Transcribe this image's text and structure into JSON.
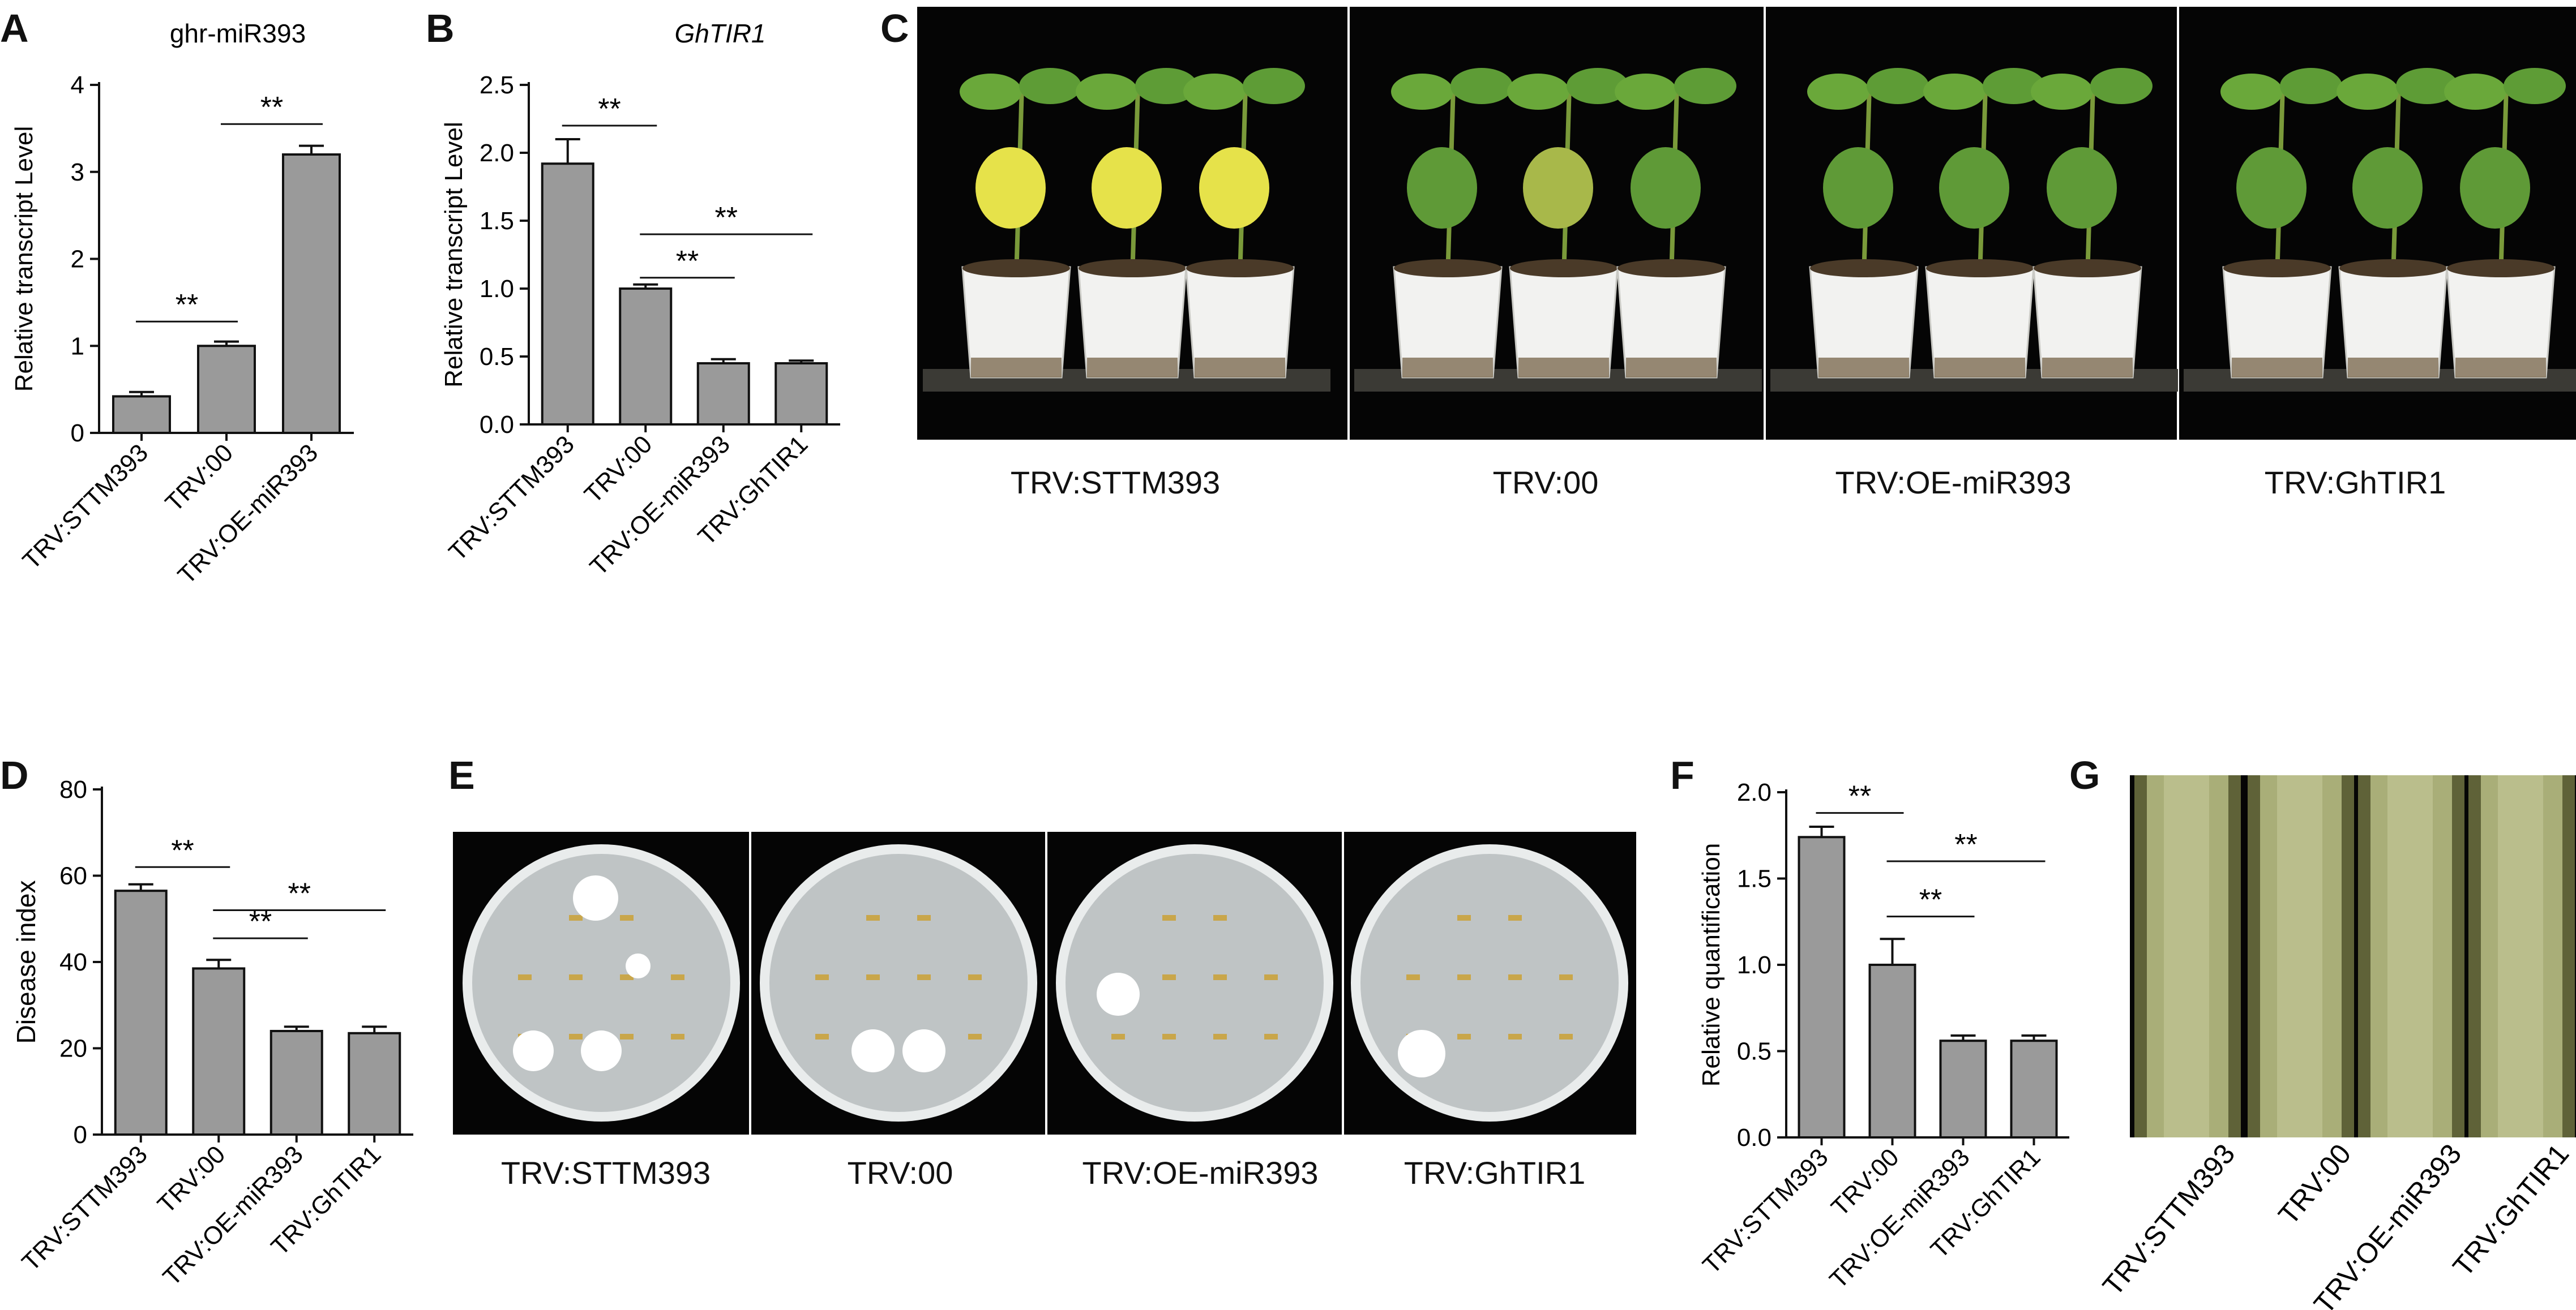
{
  "panels": {
    "A": "A",
    "B": "B",
    "C": "C",
    "D": "D",
    "E": "E",
    "F": "F",
    "G": "G"
  },
  "significance": "**",
  "colors": {
    "bar": "#9a9a9a",
    "axis": "#111111",
    "photo_bg": "#050505",
    "plate_bg": "#bfc4c5",
    "stem": "#aab27a"
  },
  "chart_data": [
    {
      "id": "A",
      "type": "bar",
      "title": "ghr-miR393",
      "ylabel": "Relative transcript Level",
      "categories": [
        "TRV:STTM393",
        "TRV:00",
        "TRV:OE-miR393"
      ],
      "values": [
        0.42,
        1.0,
        3.2
      ],
      "errors": [
        0.05,
        0.05,
        0.1
      ],
      "ylim": [
        0,
        4
      ],
      "yticks": [
        0,
        1,
        2,
        3,
        4
      ],
      "ytick_labels": [
        "0",
        "1",
        "2",
        "3",
        "4"
      ],
      "comparisons": [
        {
          "from": 0,
          "to": 1,
          "y": 1.28
        },
        {
          "from": 1,
          "to": 2,
          "y": 3.55
        }
      ]
    },
    {
      "id": "B",
      "type": "bar",
      "title": "GhTIR1",
      "ylabel": "Relative transcript Level",
      "categories": [
        "TRV:STTM393",
        "TRV:00",
        "TRV:OE-miR393",
        "TRV:GhTIR1"
      ],
      "values": [
        1.92,
        1.0,
        0.45,
        0.45
      ],
      "errors": [
        0.18,
        0.03,
        0.03,
        0.02
      ],
      "ylim": [
        0,
        2.5
      ],
      "yticks": [
        0,
        0.5,
        1.0,
        1.5,
        2.0,
        2.5
      ],
      "ytick_labels": [
        "0.0",
        "0.5",
        "1.0",
        "1.5",
        "2.0",
        "2.5"
      ],
      "comparisons": [
        {
          "from": 0,
          "to": 1,
          "y": 2.2
        },
        {
          "from": 1,
          "to": 2,
          "y": 1.08
        },
        {
          "from": 1,
          "to": 3,
          "y": 1.4
        }
      ]
    },
    {
      "id": "D",
      "type": "bar",
      "title": "",
      "ylabel": "Disease index",
      "categories": [
        "TRV:STTM393",
        "TRV:00",
        "TRV:OE-miR393",
        "TRV:GhTIR1"
      ],
      "values": [
        56.5,
        38.5,
        24.0,
        23.5
      ],
      "errors": [
        1.5,
        2.0,
        1.0,
        1.5
      ],
      "ylim": [
        0,
        80
      ],
      "yticks": [
        0,
        20,
        40,
        60,
        80
      ],
      "ytick_labels": [
        "0",
        "20",
        "40",
        "60",
        "80"
      ],
      "comparisons": [
        {
          "from": 0,
          "to": 1,
          "y": 62
        },
        {
          "from": 1,
          "to": 2,
          "y": 45.5
        },
        {
          "from": 1,
          "to": 3,
          "y": 52
        }
      ]
    },
    {
      "id": "F",
      "type": "bar",
      "title": "",
      "ylabel": "Relative quantification",
      "categories": [
        "TRV:STTM393",
        "TRV:00",
        "TRV:OE-miR393",
        "TRV:GhTIR1"
      ],
      "values": [
        1.74,
        1.0,
        0.56,
        0.56
      ],
      "errors": [
        0.06,
        0.15,
        0.03,
        0.03
      ],
      "ylim": [
        0,
        2.0
      ],
      "yticks": [
        0,
        0.5,
        1.0,
        1.5,
        2.0
      ],
      "ytick_labels": [
        "0.0",
        "0.5",
        "1.0",
        "1.5",
        "2.0"
      ],
      "comparisons": [
        {
          "from": 0,
          "to": 1,
          "y": 1.88
        },
        {
          "from": 1,
          "to": 2,
          "y": 1.28
        },
        {
          "from": 1,
          "to": 3,
          "y": 1.6
        }
      ]
    }
  ],
  "photo_C": {
    "captions": [
      "TRV:STTM393",
      "TRV:00",
      "TRV:OE-miR393",
      "TRV:GhTIR1"
    ]
  },
  "photo_E": {
    "captions": [
      "TRV:STTM393",
      "TRV:00",
      "TRV:OE-miR393",
      "TRV:GhTIR1"
    ]
  },
  "photo_G": {
    "labels": [
      "TRV:STTM393",
      "TRV:00",
      "TRV:OE-miR393",
      "TRV:GhTIR1"
    ]
  }
}
